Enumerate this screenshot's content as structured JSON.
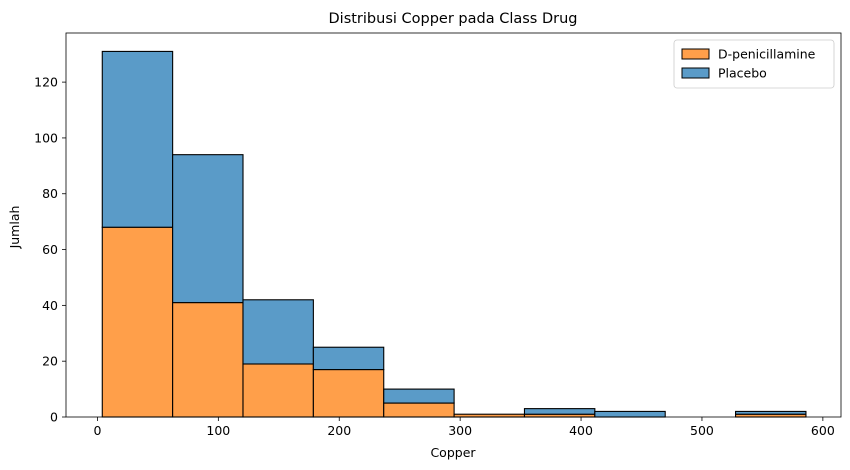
{
  "chart_data": {
    "type": "bar",
    "stacked": true,
    "title": "Distribusi Copper pada Class Drug",
    "xlabel": "Copper",
    "ylabel": "Jumlah",
    "bin_edges": [
      4,
      62.2,
      120.4,
      178.6,
      236.8,
      295,
      353.2,
      411.4,
      469.6,
      527.8,
      586
    ],
    "xlim": [
      -26,
      615
    ],
    "ylim": [
      0,
      137.6
    ],
    "xticks": [
      0,
      100,
      200,
      300,
      400,
      500,
      600
    ],
    "yticks": [
      0,
      20,
      40,
      60,
      80,
      100,
      120
    ],
    "series": [
      {
        "name": "D-penicillamine",
        "color": "#ff9f4a",
        "values": [
          68,
          41,
          19,
          17,
          5,
          1,
          1,
          0,
          0,
          1
        ]
      },
      {
        "name": "Placebo",
        "color": "#5a9bc8",
        "values": [
          63,
          53,
          23,
          8,
          5,
          0,
          2,
          2,
          0,
          1
        ]
      }
    ],
    "legend": {
      "position": "top-right"
    },
    "grid": false
  }
}
